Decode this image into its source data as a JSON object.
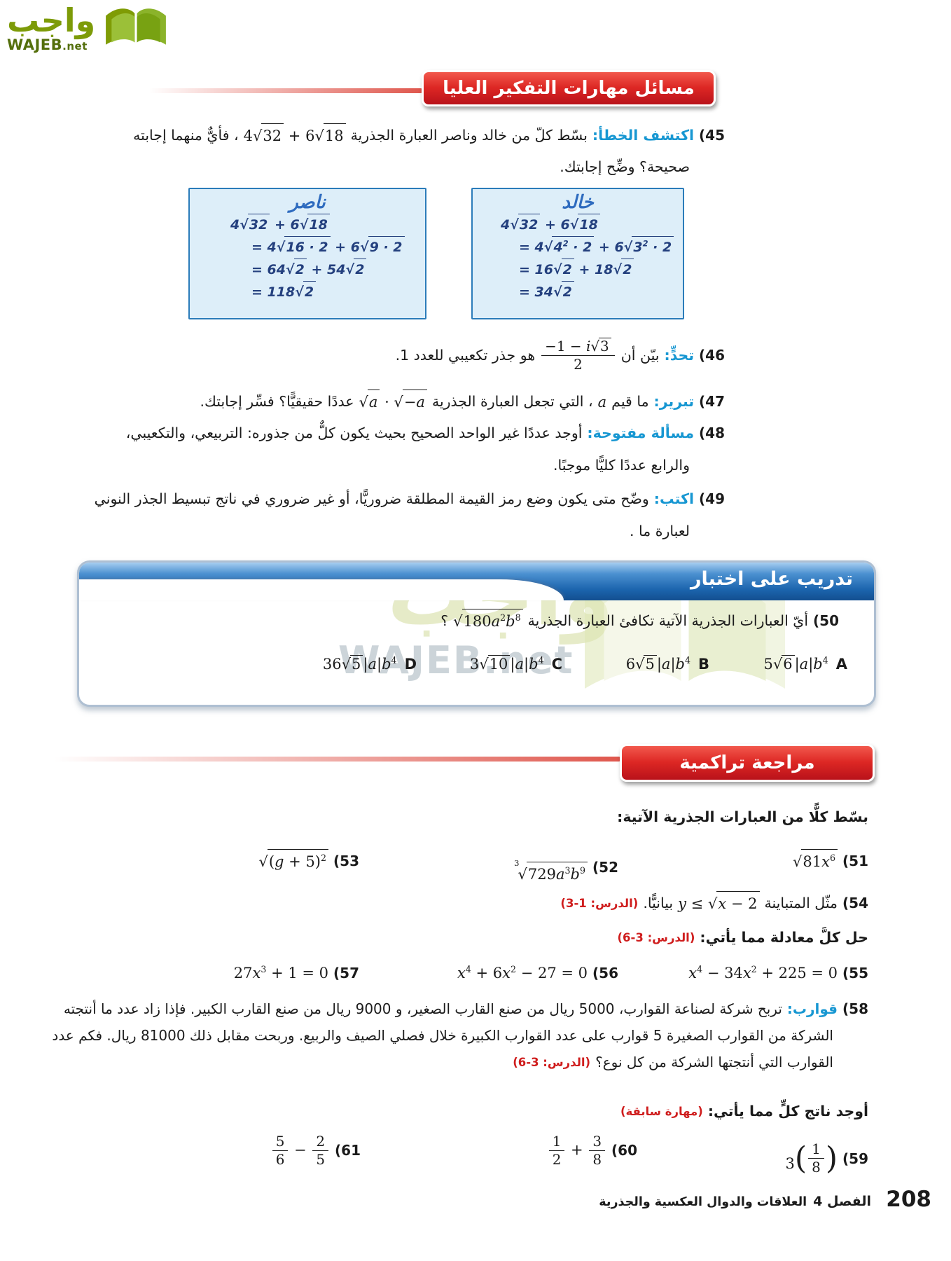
{
  "logo": {
    "arabic": "واجب",
    "latin": "WAJEB",
    "tld": ".net"
  },
  "colors": {
    "banner_red": "#dd2724",
    "banner_blue": "#1b64ad",
    "label_blue": "#1797d2",
    "ref_red": "#cf1d1d",
    "workbox_bg": "#ddeef9",
    "workbox_border": "#2b7cba",
    "handwriting": "#24407e",
    "logo_green": "#7d9b08"
  },
  "banners": {
    "higher_order": "مسائل مهارات التفكير العليا",
    "test_practice": "تدريب على اختبار",
    "cumulative_review": "مراجعة تراكمية"
  },
  "q45": {
    "num": "(45",
    "label": "اكتشف الخطأ:",
    "t1": "بسّط كلّ من خالد وناصر العبارة الجذرية",
    "math": "4rt{32} + 6rt{18}",
    "t2": "، فأيٌّ منهما إجابته",
    "line2": "صحيحة؟ وضِّح إجابتك."
  },
  "khalid": {
    "title": "خالد",
    "lines": [
      "4rt{32} + 6rt{18}",
      "= 4rt{4^{2} · 2} + 6rt{3^{2} · 2}",
      "= 16rt{2} + 18rt{2}",
      "= 34rt{2}"
    ]
  },
  "nasser": {
    "title": "ناصر",
    "lines": [
      "4rt{32} + 6rt{18}",
      "= 4rt{16 · 2} + 6rt{9 · 2}",
      "= 64rt{2} + 54rt{2}",
      "= 118rt{2}"
    ]
  },
  "q46": {
    "num": "(46",
    "label": "تحدٍّ:",
    "t1": "بيّن أن",
    "math": "fr{−1 − it{i}rt{3}}{2}",
    "t2": "هو جذر تكعيبي للعدد 1."
  },
  "q47": {
    "num": "(47",
    "label": "تبرير:",
    "t1": "ما قيم",
    "matha": "it{a}",
    "t2": "، التي تجعل العبارة الجذرية",
    "math": "rt{it{a}} · rt{−it{a}}",
    "t3": "عددًا حقيقيًّا؟ فسِّر إجابتك."
  },
  "q48": {
    "num": "(48",
    "label": "مسألة مفتوحة:",
    "line1": "أوجد عددًا غير الواحد الصحيح بحيث يكون كلٌّ من جذوره: التربيعي، والتكعيبي،",
    "line2": "والرابع عددًا كليًّا موجبًا."
  },
  "q49": {
    "num": "(49",
    "label": "اكتب:",
    "line1": "وضّح متى يكون وضع رمز القيمة المطلقة ضروريًّا، أو غير ضروري في ناتج تبسيط الجذر النوني",
    "line2": "لعبارة ما ."
  },
  "q50": {
    "num": "(50",
    "t1": "أيّ العبارات الجذرية الآتية تكافئ العبارة الجذرية",
    "math": "rt{180it{a}^{2}it{b}^{8}}",
    "t2": "؟"
  },
  "choices": [
    {
      "letter": "A",
      "math": "5rt{6}|it{a}|it{b}^{4}"
    },
    {
      "letter": "B",
      "math": "6rt{5}|it{a}|it{b}^{4}"
    },
    {
      "letter": "C",
      "math": "3rt{10}|it{a}|it{b}^{4}"
    },
    {
      "letter": "D",
      "math": "36rt{5}|it{a}|it{b}^{4}"
    }
  ],
  "review": {
    "instr1": "بسّط كلًّا من العبارات الجذرية الآتية:",
    "items1": [
      {
        "num": "(51",
        "math": "rt{81it{x}^{6}}"
      },
      {
        "num": "(52",
        "math": "rt3{729it{a}^{3}it{b}^{9}}"
      },
      {
        "num": "(53",
        "math": "rt{(it{g} + 5)^{2}}"
      }
    ],
    "q54": {
      "num": "(54",
      "t1": "مثّل المتباينة",
      "math": "it{y} ≤ rt{it{x} − 2}",
      "t2": "بيانيًّا.",
      "ref": "(الدرس: 1-3)"
    },
    "h2": {
      "text": "حل كلَّ معادلة مما يأتي:",
      "ref": "(الدرس: 3-6)"
    },
    "items2": [
      {
        "num": "(55",
        "math": "it{x}^{4} − 34it{x}^{2} + 225 = 0"
      },
      {
        "num": "(56",
        "math": "it{x}^{4} + 6it{x}^{2} − 27 = 0"
      },
      {
        "num": "(57",
        "math": "27it{x}^{3} + 1 = 0"
      }
    ],
    "q58": {
      "num": "(58",
      "label": "قوارب:",
      "line1": "تربح شركة لصناعة القوارب، 5000 ريال من صنع القارب الصغير، و 9000 ريال من صنع القارب الكبير. فإذا زاد عدد ما أنتجته",
      "line2": "الشركة من القوارب الصغيرة 5 قوارب على عدد القوارب الكبيرة خلال فصلي الصيف والربيع. وربحت مقابل ذلك 81000 ريال. فكم عدد",
      "line3": "القوارب التي أنتجتها الشركة من كل نوع؟",
      "ref": "(الدرس: 3-6)"
    },
    "h3": {
      "text": "أوجد ناتج كلٍّ مما يأتي:",
      "ref": "(مهارة سابقة)"
    },
    "items3": [
      {
        "num": "(59",
        "math": "3bp{fr{1}{8}}"
      },
      {
        "num": "(60",
        "math": "fr{1}{2} + fr{3}{8}"
      },
      {
        "num": "(61",
        "math": "fr{5}{6} − fr{2}{5}"
      }
    ]
  },
  "watermark": {
    "arabic": "واجب",
    "latin": "WAJEB.net"
  },
  "footer": {
    "page": "208",
    "chapter": "الفصل 4",
    "book": "العلاقات والدوال العكسية والجذرية"
  }
}
